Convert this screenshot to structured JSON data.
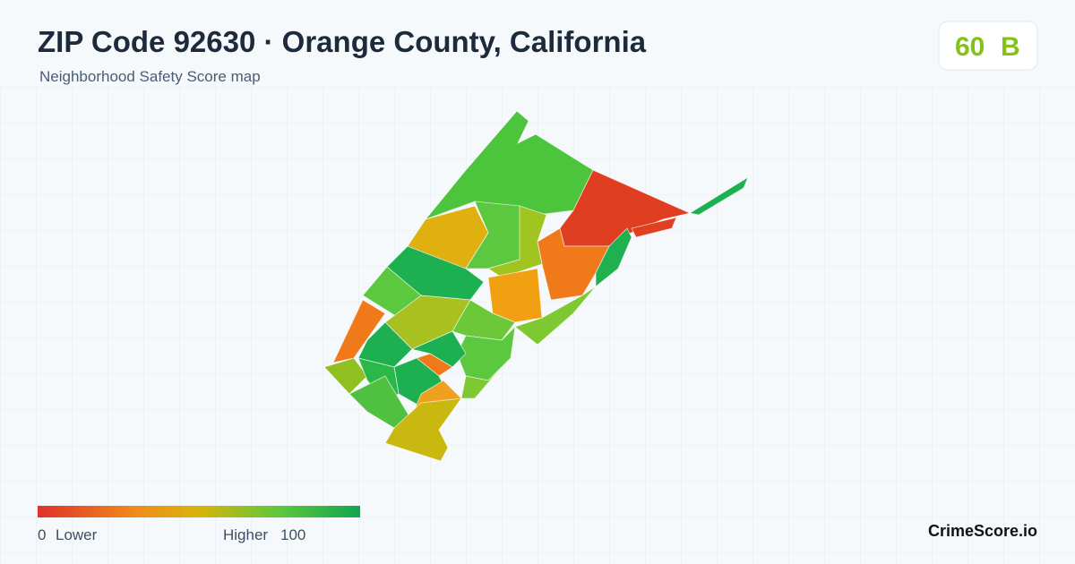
{
  "header": {
    "title": "ZIP Code 92630 · Orange County, California",
    "subtitle": "Neighborhood Safety Score map"
  },
  "score": {
    "value": 60,
    "grade": "B"
  },
  "legend": {
    "min": 0,
    "min_label": "Lower",
    "max_label": "Higher",
    "max": 100
  },
  "brand": "CrimeScore.io"
}
